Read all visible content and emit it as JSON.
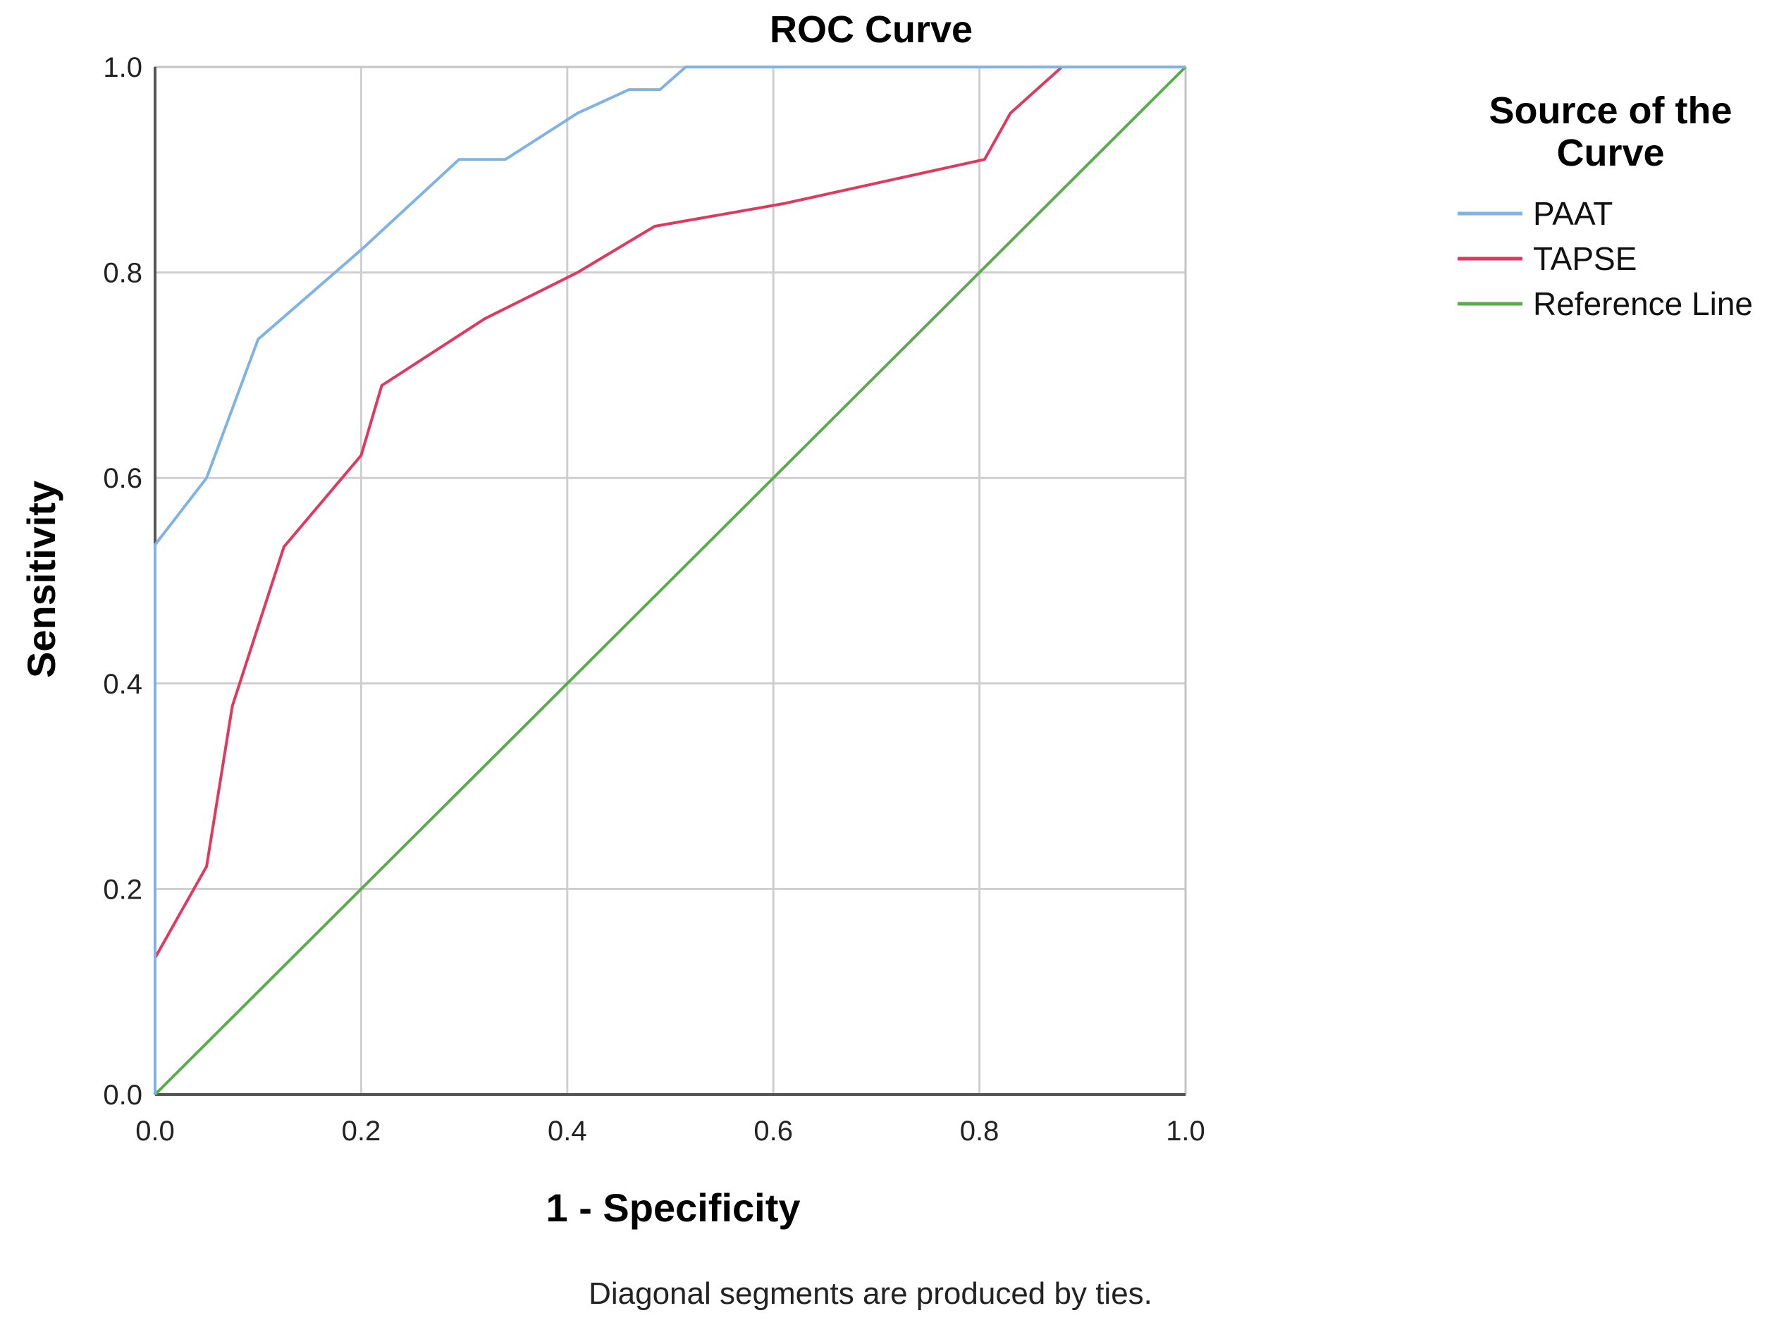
{
  "chart_data": {
    "type": "line",
    "title": "ROC Curve",
    "xlabel": "1 - Specificity",
    "ylabel": "Sensitivity",
    "xlim": [
      0,
      1
    ],
    "ylim": [
      0,
      1
    ],
    "xticks": [
      "0.0",
      "0.2",
      "0.4",
      "0.6",
      "0.8",
      "1.0"
    ],
    "yticks": [
      "0.0",
      "0.2",
      "0.4",
      "0.6",
      "0.8",
      "1.0"
    ],
    "grid": true,
    "legend": {
      "title": "Source of the Curve",
      "position": "right"
    },
    "footnote": "Diagonal segments are produced by ties.",
    "series": [
      {
        "name": "PAAT",
        "color": "#7fb2e5",
        "x": [
          0,
          0,
          0.05,
          0.1,
          0.2,
          0.295,
          0.34,
          0.41,
          0.46,
          0.49,
          0.515,
          0.6,
          0.8,
          0.9,
          1.0
        ],
        "y": [
          0,
          0.535,
          0.6,
          0.735,
          0.822,
          0.91,
          0.91,
          0.955,
          0.978,
          0.978,
          1.0,
          1.0,
          1.0,
          1.0,
          1.0
        ]
      },
      {
        "name": "TAPSE",
        "color": "#e0385e",
        "x": [
          0,
          0,
          0.05,
          0.075,
          0.125,
          0.2,
          0.22,
          0.32,
          0.41,
          0.485,
          0.61,
          0.805,
          0.83,
          0.88,
          1.0
        ],
        "y": [
          0,
          0.133,
          0.222,
          0.378,
          0.533,
          0.622,
          0.69,
          0.755,
          0.8,
          0.845,
          0.867,
          0.91,
          0.955,
          1.0,
          1.0
        ]
      },
      {
        "name": "Reference Line",
        "color": "#5aab4e",
        "x": [
          0,
          1
        ],
        "y": [
          0,
          1
        ]
      }
    ]
  }
}
